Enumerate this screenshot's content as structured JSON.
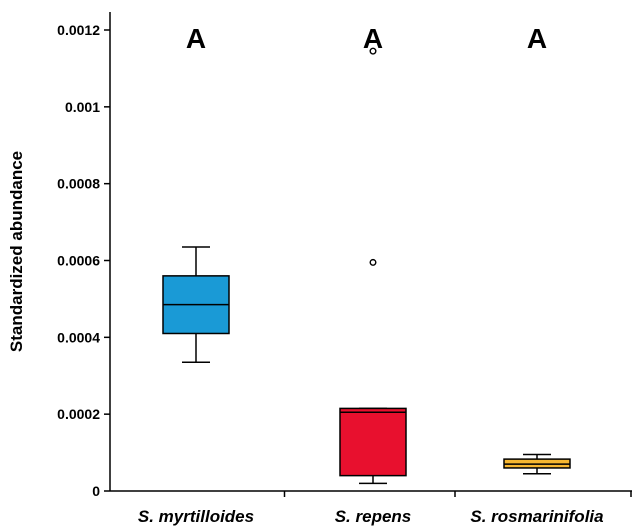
{
  "chart_data": {
    "type": "box",
    "ylabel": "Standardized abundance",
    "xlabel": "",
    "ylim": [
      0,
      0.0012
    ],
    "yticks": [
      "0",
      "0.0002",
      "0.0004",
      "0.0006",
      "0.0008",
      "0.001",
      "0.0012"
    ],
    "ytick_values": [
      0,
      0.0002,
      0.0004,
      0.0006,
      0.0008,
      0.001,
      0.0012
    ],
    "grid": false,
    "categories": [
      "S. myrtilloides",
      "S. repens",
      "S. rosmarinifolia"
    ],
    "boxes": [
      {
        "name": "S. myrtilloides",
        "color": "#1a9ad6",
        "whisker_low": 0.000335,
        "q1": 0.00041,
        "median": 0.000485,
        "q3": 0.00056,
        "whisker_high": 0.000635,
        "outliers": []
      },
      {
        "name": "S. repens",
        "color": "#e8102e",
        "whisker_low": 2e-05,
        "q1": 4e-05,
        "median": 0.000205,
        "q3": 0.000215,
        "whisker_high": 0.000215,
        "outliers": [
          0.000595,
          0.001145
        ]
      },
      {
        "name": "S. rosmarinifolia",
        "color": "#f7b731",
        "whisker_low": 4.5e-05,
        "q1": 6e-05,
        "median": 7e-05,
        "q3": 8.3e-05,
        "whisker_high": 9.5e-05,
        "outliers": []
      }
    ],
    "group_letters": [
      "A",
      "A",
      "A"
    ]
  }
}
